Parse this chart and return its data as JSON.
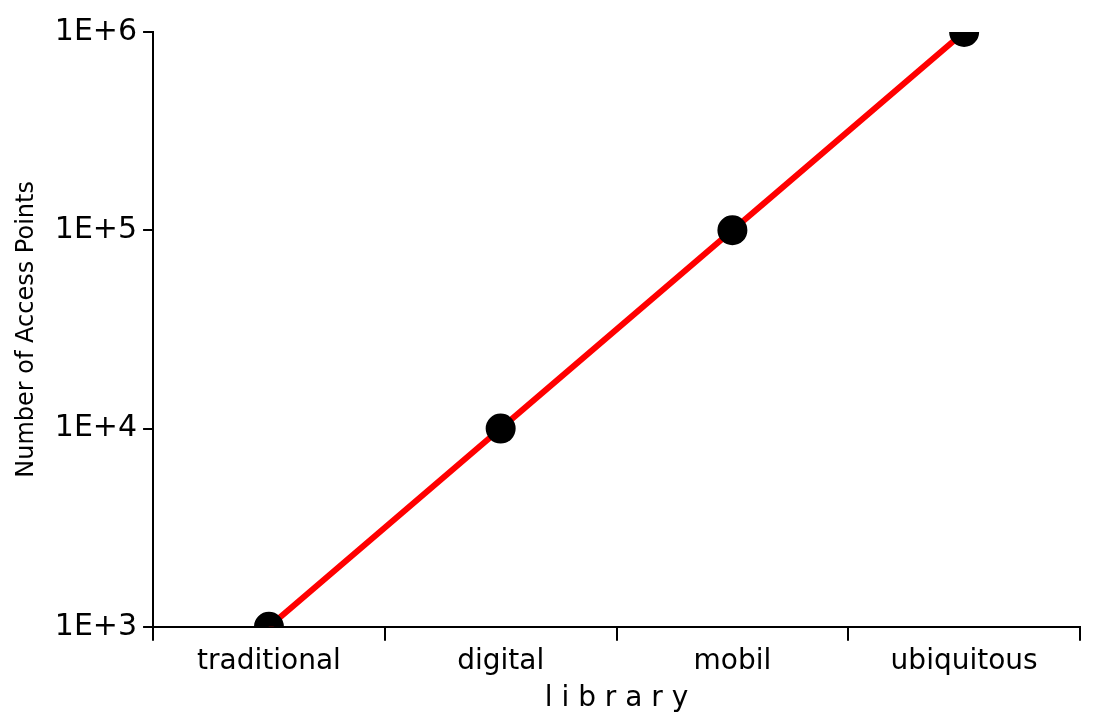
{
  "chart_data": {
    "type": "line",
    "xlabel": "l i b r a r y",
    "ylabel": "Number of Access Points",
    "categories": [
      "traditional",
      "digital",
      "mobil",
      "ubiquitous"
    ],
    "series": [
      {
        "color": "#ff0000",
        "values": [
          1000,
          10000,
          100000,
          1000000
        ]
      }
    ],
    "log": "y",
    "ylim": [
      1000,
      1000000
    ],
    "yticks": [
      {
        "value": 1000,
        "label": "1E+3"
      },
      {
        "value": 10000,
        "label": "1E+4"
      },
      {
        "value": 100000,
        "label": "1E+5"
      },
      {
        "value": 1000000,
        "label": "1E+6"
      }
    ],
    "marker": "circle",
    "line_style": "solid",
    "grid": false,
    "legend": false
  }
}
